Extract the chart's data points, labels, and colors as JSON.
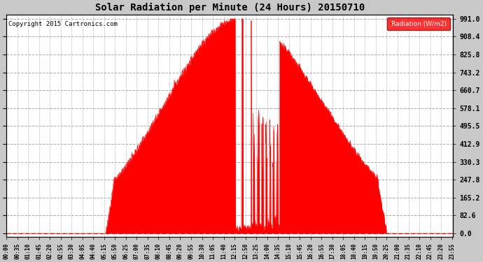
{
  "title": "Solar Radiation per Minute (24 Hours) 20150710",
  "copyright_text": "Copyright 2015 Cartronics.com",
  "legend_label": "Radiation (W/m2)",
  "bg_color": "#c8c8c8",
  "plot_bg_color": "#ffffff",
  "fill_color": "#ff0000",
  "line_color": "#ff0000",
  "yticks": [
    0.0,
    82.6,
    165.2,
    247.8,
    330.3,
    412.9,
    495.5,
    578.1,
    660.7,
    743.2,
    825.8,
    908.4,
    991.0
  ],
  "ymax": 1010.0,
  "ymin": -15.0,
  "dpi": 100
}
